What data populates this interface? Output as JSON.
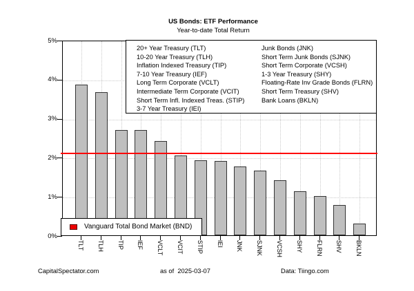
{
  "header": {
    "title": "US Bonds: ETF Performance",
    "subtitle": "Year-to-date Total Return"
  },
  "footer": {
    "source_left": "CapitalSpectator.com",
    "as_of": "as of  2025-03-07",
    "source_right": "Data: Tiingo.com"
  },
  "etf_legend": {
    "left_column": [
      "20+ Year Treasury (TLT)",
      "10-20 Year Treasury (TLH)",
      "Inflation Indexed Treasury (TIP)",
      "7-10 Year Treasury (IEF)",
      "Long Term Corporate (VCLT)",
      "Intermediate Term Corporate (VCIT)",
      "Short Term Infl. Indexed Treas. (STIP)",
      "3-7 Year Treasury (IEI)"
    ],
    "right_column": [
      "Junk Bonds (JNK)",
      "Short Term Junk Bonds (SJNK)",
      "Short Term Corporate (VCSH)",
      "1-3 Year Treasury (SHY)",
      "Floating-Rate Inv Grade Bonds (FLRN)",
      "Short Term Treasury (SHV)",
      "Bank Loans (BKLN)"
    ]
  },
  "benchmark_legend": {
    "label": "Vanguard Total Bond Market (BND)",
    "marker_color": "#EE0000"
  },
  "chart_data": {
    "type": "bar",
    "title": "US Bonds: ETF Performance",
    "subtitle": "Year-to-date Total Return",
    "categories": [
      "TLT",
      "TLH",
      "TIP",
      "IEF",
      "VCLT",
      "VCIT",
      "STIP",
      "IEI",
      "JNK",
      "SJNK",
      "VCSH",
      "SHY",
      "FLRN",
      "SHV",
      "BKLN"
    ],
    "values": [
      3.85,
      3.66,
      2.7,
      2.7,
      2.42,
      2.04,
      1.92,
      1.9,
      1.76,
      1.66,
      1.4,
      1.13,
      1.0,
      0.77,
      0.3
    ],
    "unit": "%",
    "ylim": [
      0,
      5
    ],
    "y_ticks": [
      "0%",
      "1%",
      "2%",
      "3%",
      "4%",
      "5%"
    ],
    "grid": true,
    "legend_position": "top-right-inside",
    "bar_fill": "#BFBFBF",
    "bar_border": "#333333",
    "reference_line": {
      "label": "Vanguard Total Bond Market (BND)",
      "value": 2.15,
      "color": "#FF0000"
    }
  }
}
